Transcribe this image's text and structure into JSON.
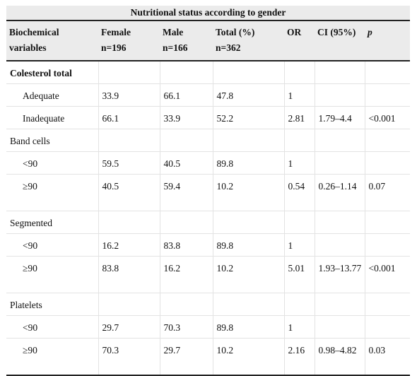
{
  "table": {
    "title": "Nutritional status according to gender",
    "headers": [
      {
        "line1": "Biochemical",
        "line2": "variables"
      },
      {
        "line1": "Female",
        "line2": "n=196"
      },
      {
        "line1": "Male",
        "line2": "n=166"
      },
      {
        "line1": "Total (%)",
        "line2": "n=362"
      },
      {
        "line1": "OR",
        "line2": ""
      },
      {
        "line1": "CI (95%)",
        "line2": ""
      },
      {
        "line1": "p",
        "line2": ""
      }
    ],
    "rows": [
      {
        "label": "Colesterol total",
        "female": "",
        "male": "",
        "total": "",
        "or": "",
        "ci": "",
        "p": ""
      },
      {
        "label": "Adequate",
        "female": "33.9",
        "male": "66.1",
        "total": "47.8",
        "or": "1",
        "ci": "",
        "p": ""
      },
      {
        "label": "Inadequate",
        "female": "66.1",
        "male": "33.9",
        "total": "52.2",
        "or": "2.81",
        "ci": "1.79–4.4",
        "p": "<0.001"
      },
      {
        "label": "Band cells",
        "female": "",
        "male": "",
        "total": "",
        "or": "",
        "ci": "",
        "p": ""
      },
      {
        "label": "<90",
        "female": "59.5",
        "male": "40.5",
        "total": "89.8",
        "or": "1",
        "ci": "",
        "p": ""
      },
      {
        "label": "≥90",
        "female": "40.5",
        "male": "59.4",
        "total": "10.2",
        "or": "0.54",
        "ci": "0.26–1.14",
        "p": "0.07"
      },
      {
        "label": "Segmented",
        "female": "",
        "male": "",
        "total": "",
        "or": "",
        "ci": "",
        "p": ""
      },
      {
        "label": "<90",
        "female": "16.2",
        "male": "83.8",
        "total": "89.8",
        "or": "1",
        "ci": "",
        "p": ""
      },
      {
        "label": "≥90",
        "female": "83.8",
        "male": "16.2",
        "total": "10.2",
        "or": "5.01",
        "ci": "1.93–13.77",
        "p": "<0.001"
      },
      {
        "label": "Platelets",
        "female": "",
        "male": "",
        "total": "",
        "or": "",
        "ci": "",
        "p": ""
      },
      {
        "label": "<90",
        "female": "29.7",
        "male": "70.3",
        "total": "89.8",
        "or": "1",
        "ci": "",
        "p": ""
      },
      {
        "label": "≥90",
        "female": "70.3",
        "male": "29.7",
        "total": "10.2",
        "or": "2.16",
        "ci": "0.98–4.82",
        "p": "0.03"
      }
    ]
  }
}
